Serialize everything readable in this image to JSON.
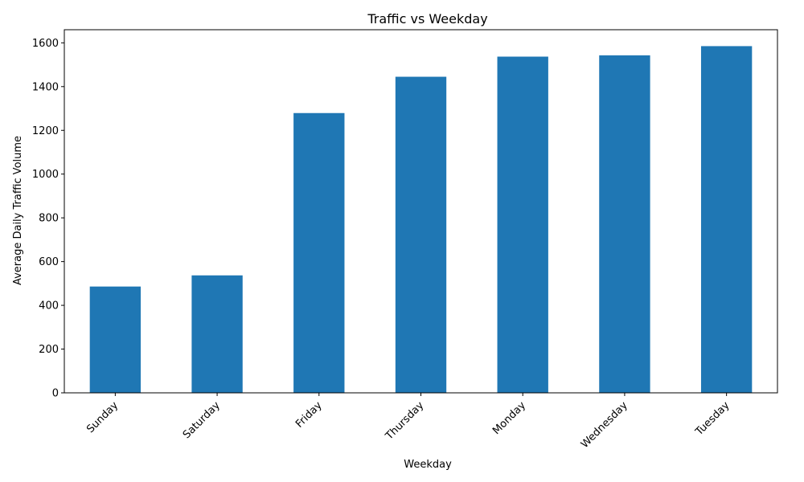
{
  "chart_data": {
    "type": "bar",
    "title": "Traffic vs Weekday",
    "xlabel": "Weekday",
    "ylabel": "Average Daily Traffic Volume",
    "categories": [
      "Sunday",
      "Saturday",
      "Friday",
      "Thursday",
      "Monday",
      "Wednesday",
      "Tuesday"
    ],
    "values": [
      486,
      537,
      1279,
      1445,
      1537,
      1543,
      1585
    ],
    "ylim": [
      0,
      1660
    ],
    "yticks": [
      0,
      200,
      400,
      600,
      800,
      1000,
      1200,
      1400,
      1600
    ],
    "bar_color": "#1f77b4",
    "grid": false,
    "legend": "none"
  }
}
